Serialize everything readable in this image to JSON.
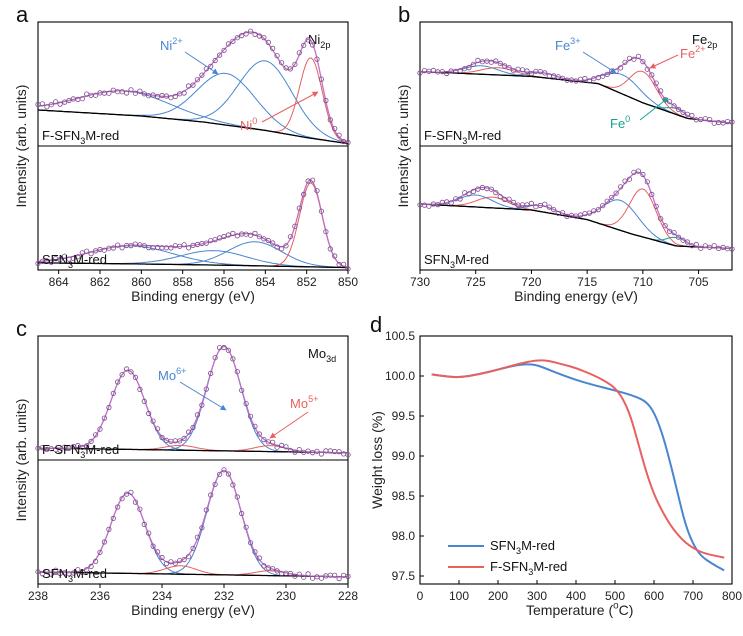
{
  "colors": {
    "raw": "#7a4a8a",
    "envelope": "#c070c8",
    "blue": "#4a86d0",
    "red": "#e86060",
    "teal": "#1aa090",
    "black": "#000000"
  },
  "chart_data": [
    {
      "panel_label": "a",
      "type": "line",
      "title": "Ni",
      "title_sub": "2p",
      "xlabel": "Binding energy (eV)",
      "ylabel": "Intensity (arb. units)",
      "xlim": [
        865,
        850
      ],
      "xticks": [
        "864",
        "862",
        "860",
        "858",
        "856",
        "854",
        "852",
        "850"
      ],
      "xtick_values": [
        864,
        862,
        860,
        858,
        856,
        854,
        852,
        850
      ],
      "sample_top": "F-SFN3M-red",
      "sample_bottom": "SFN3M-red",
      "sample_top_parts": [
        "F-SFN",
        "3",
        "M-red"
      ],
      "sample_bottom_parts": [
        "SFN",
        "3",
        "M-red"
      ],
      "annotations": [
        {
          "text": "Ni",
          "sup": "2+",
          "color": "#4a86d0"
        },
        {
          "text": "Ni",
          "sup": "0",
          "color": "#e86060"
        }
      ],
      "subpanels": [
        {
          "name": "F-SFN3M-red",
          "baseline": [
            [
              865,
              0.3
            ],
            [
              860,
              0.25
            ],
            [
              857,
              0.2
            ],
            [
              854,
              0.13
            ],
            [
              852,
              0.07
            ],
            [
              850,
              0.02
            ]
          ],
          "peaks": [
            {
              "center": 860.8,
              "height": 0.2,
              "width": 2.2,
              "color": "#4a86d0"
            },
            {
              "center": 855.9,
              "height": 0.43,
              "width": 1.4,
              "color": "#4a86d0"
            },
            {
              "center": 854.0,
              "height": 0.58,
              "width": 1.3,
              "color": "#4a86d0"
            },
            {
              "center": 851.8,
              "height": 0.67,
              "width": 0.55,
              "color": "#e86060"
            }
          ]
        },
        {
          "name": "SFN3M-red",
          "baseline": [
            [
              865,
              0.06
            ],
            [
              860,
              0.05
            ],
            [
              856,
              0.04
            ],
            [
              853,
              0.03
            ],
            [
              850,
              0.02
            ]
          ],
          "peaks": [
            {
              "center": 860.5,
              "height": 0.15,
              "width": 2.0,
              "color": "#4a86d0"
            },
            {
              "center": 856.5,
              "height": 0.12,
              "width": 1.6,
              "color": "#4a86d0"
            },
            {
              "center": 854.5,
              "height": 0.2,
              "width": 1.3,
              "color": "#4a86d0"
            },
            {
              "center": 851.8,
              "height": 0.7,
              "width": 0.55,
              "color": "#e86060"
            }
          ]
        }
      ]
    },
    {
      "panel_label": "b",
      "type": "line",
      "title": "Fe",
      "title_sub": "2p",
      "xlabel": "Binding energy (eV)",
      "ylabel": "Intensity (arb. units)",
      "xlim": [
        730,
        702
      ],
      "xticks": [
        "730",
        "725",
        "720",
        "715",
        "710",
        "705"
      ],
      "xtick_values": [
        730,
        725,
        720,
        715,
        710,
        705
      ],
      "sample_top": "F-SFN3M-red",
      "sample_bottom": "SFN3M-red",
      "sample_top_parts": [
        "F-SFN",
        "3",
        "M-red"
      ],
      "sample_bottom_parts": [
        "SFN",
        "3",
        "M-red"
      ],
      "annotations": [
        {
          "text": "Fe",
          "sup": "3+",
          "color": "#4a86d0"
        },
        {
          "text": "Fe",
          "sup": "2+",
          "color": "#e86060"
        },
        {
          "text": "Fe",
          "sup": "0",
          "color": "#1aa090"
        }
      ],
      "subpanels": [
        {
          "name": "F-SFN3M-red",
          "baseline": [
            [
              730,
              0.62
            ],
            [
              720,
              0.58
            ],
            [
              714,
              0.52
            ],
            [
              710,
              0.36
            ],
            [
              706,
              0.23
            ],
            [
              702,
              0.19
            ]
          ],
          "peaks": [
            {
              "center": 724.5,
              "height": 0.07,
              "width": 1.5,
              "color": "#4a86d0"
            },
            {
              "center": 723.0,
              "height": 0.06,
              "width": 1.5,
              "color": "#e86060"
            },
            {
              "center": 719.0,
              "height": 0.04,
              "width": 1.2,
              "color": "#4a86d0"
            },
            {
              "center": 711.8,
              "height": 0.16,
              "width": 1.6,
              "color": "#4a86d0"
            },
            {
              "center": 710.0,
              "height": 0.26,
              "width": 1.2,
              "color": "#e86060"
            },
            {
              "center": 707.0,
              "height": 0.05,
              "width": 0.8,
              "color": "#1aa090"
            }
          ]
        },
        {
          "name": "SFN3M-red",
          "baseline": [
            [
              730,
              0.55
            ],
            [
              720,
              0.5
            ],
            [
              715,
              0.42
            ],
            [
              711,
              0.3
            ],
            [
              707,
              0.2
            ],
            [
              702,
              0.18
            ]
          ],
          "peaks": [
            {
              "center": 725.0,
              "height": 0.1,
              "width": 1.5,
              "color": "#4a86d0"
            },
            {
              "center": 723.5,
              "height": 0.09,
              "width": 1.4,
              "color": "#e86060"
            },
            {
              "center": 719.0,
              "height": 0.05,
              "width": 1.2,
              "color": "#4a86d0"
            },
            {
              "center": 712.0,
              "height": 0.25,
              "width": 1.6,
              "color": "#4a86d0"
            },
            {
              "center": 710.0,
              "height": 0.4,
              "width": 1.2,
              "color": "#e86060"
            },
            {
              "center": 707.0,
              "height": 0.07,
              "width": 0.8,
              "color": "#1aa090"
            }
          ]
        }
      ]
    },
    {
      "panel_label": "c",
      "type": "line",
      "title": "Mo",
      "title_sub": "3d",
      "xlabel": "Binding energy (eV)",
      "ylabel": "Intensity (arb. units)",
      "xlim": [
        238,
        228
      ],
      "xticks": [
        "238",
        "236",
        "234",
        "232",
        "230",
        "228"
      ],
      "xtick_values": [
        238,
        236,
        234,
        232,
        230,
        228
      ],
      "sample_top": "F-SFN3M-red",
      "sample_bottom": "SFN3M-red",
      "sample_top_parts": [
        "F-SFN",
        "3",
        "M-red"
      ],
      "sample_bottom_parts": [
        "SFN",
        "3",
        "M-red"
      ],
      "annotations": [
        {
          "text": "Mo",
          "sup": "6+",
          "color": "#4a86d0"
        },
        {
          "text": "Mo",
          "sup": "5+",
          "color": "#e86060"
        }
      ],
      "subpanels": [
        {
          "name": "F-SFN3M-red",
          "baseline": [
            [
              238,
              0.1
            ],
            [
              233,
              0.08
            ],
            [
              228,
              0.06
            ]
          ],
          "peaks": [
            {
              "center": 235.1,
              "height": 0.66,
              "width": 0.55,
              "color": "#4a86d0"
            },
            {
              "center": 232.0,
              "height": 0.87,
              "width": 0.55,
              "color": "#4a86d0"
            },
            {
              "center": 233.4,
              "height": 0.04,
              "width": 0.5,
              "color": "#e86060"
            },
            {
              "center": 230.5,
              "height": 0.05,
              "width": 0.5,
              "color": "#e86060"
            }
          ]
        },
        {
          "name": "SFN3M-red",
          "baseline": [
            [
              238,
              0.1
            ],
            [
              233,
              0.08
            ],
            [
              228,
              0.06
            ]
          ],
          "peaks": [
            {
              "center": 235.1,
              "height": 0.67,
              "width": 0.55,
              "color": "#4a86d0"
            },
            {
              "center": 232.0,
              "height": 0.87,
              "width": 0.55,
              "color": "#4a86d0"
            },
            {
              "center": 233.4,
              "height": 0.07,
              "width": 0.5,
              "color": "#e86060"
            },
            {
              "center": 230.5,
              "height": 0.04,
              "width": 0.5,
              "color": "#e86060"
            }
          ]
        }
      ]
    },
    {
      "panel_label": "d",
      "type": "line",
      "xlabel": "Temperature (oC)",
      "xlabel_parts": [
        "Temperature (",
        "o",
        "C)"
      ],
      "ylabel": "Weight loss (%)",
      "xlim": [
        0,
        800
      ],
      "ylim": [
        97.4,
        100.5
      ],
      "xticks": [
        "0",
        "100",
        "200",
        "300",
        "400",
        "500",
        "600",
        "700",
        "800"
      ],
      "xtick_values": [
        0,
        100,
        200,
        300,
        400,
        500,
        600,
        700,
        800
      ],
      "yticks": [
        "97.5",
        "98.0",
        "98.5",
        "99.0",
        "99.5",
        "100.0",
        "100.5"
      ],
      "ytick_values": [
        97.5,
        98.0,
        98.5,
        99.0,
        99.5,
        100.0,
        100.5
      ],
      "series": [
        {
          "name": "SFN3M-red",
          "name_parts": [
            "SFN",
            "3",
            "M-red"
          ],
          "color": "#4a86d0",
          "x": [
            30,
            60,
            100,
            150,
            200,
            250,
            290,
            320,
            350,
            400,
            450,
            500,
            550,
            580,
            600,
            620,
            640,
            660,
            680,
            700,
            720,
            750,
            780
          ],
          "y": [
            100.02,
            100.0,
            99.98,
            100.02,
            100.08,
            100.14,
            100.15,
            100.1,
            100.04,
            99.95,
            99.88,
            99.82,
            99.75,
            99.68,
            99.55,
            99.3,
            98.95,
            98.55,
            98.15,
            97.9,
            97.75,
            97.65,
            97.57
          ]
        },
        {
          "name": "F-SFN3M-red",
          "name_parts": [
            "F-SFN",
            "3",
            "M-red"
          ],
          "color": "#e86060",
          "x": [
            30,
            60,
            100,
            150,
            200,
            250,
            300,
            330,
            370,
            400,
            450,
            480,
            500,
            520,
            540,
            560,
            580,
            600,
            620,
            640,
            660,
            680,
            700,
            720,
            740,
            760,
            780
          ],
          "y": [
            100.02,
            100.0,
            99.98,
            100.02,
            100.08,
            100.15,
            100.2,
            100.19,
            100.14,
            100.1,
            100.0,
            99.92,
            99.85,
            99.72,
            99.5,
            99.15,
            98.8,
            98.52,
            98.32,
            98.15,
            98.02,
            97.92,
            97.85,
            97.8,
            97.77,
            97.75,
            97.73
          ]
        }
      ]
    }
  ]
}
